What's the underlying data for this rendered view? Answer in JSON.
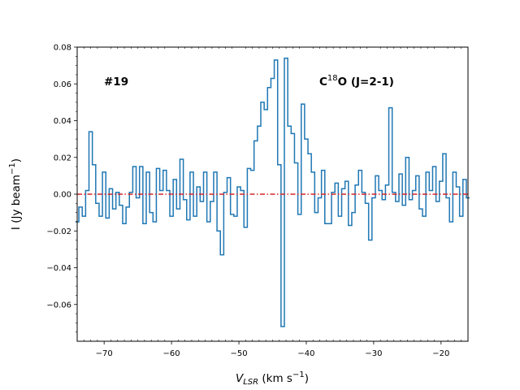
{
  "chart_data": {
    "type": "line",
    "drawstyle": "steps-mid",
    "series": [
      {
        "name": "C18O (J=2-1) spectrum",
        "color": "#1f77b4",
        "x": [
          -74,
          -73.5,
          -73,
          -72.5,
          -72,
          -71.5,
          -71,
          -70.5,
          -70,
          -69.5,
          -69,
          -68.5,
          -68,
          -67.5,
          -67,
          -66.5,
          -66,
          -65.5,
          -65,
          -64.5,
          -64,
          -63.5,
          -63,
          -62.5,
          -62,
          -61.5,
          -61,
          -60.5,
          -60,
          -59.5,
          -59,
          -58.5,
          -58,
          -57.5,
          -57,
          -56.5,
          -56,
          -55.5,
          -55,
          -54.5,
          -54,
          -53.5,
          -53,
          -52.5,
          -52,
          -51.5,
          -51,
          -50.5,
          -50,
          -49.5,
          -49,
          -48.5,
          -48,
          -47.5,
          -47,
          -46.5,
          -46,
          -45.5,
          -45,
          -44.5,
          -44,
          -43.5,
          -43,
          -42.5,
          -42,
          -41.5,
          -41,
          -40.5,
          -40,
          -39.5,
          -39,
          -38.5,
          -38,
          -37.5,
          -37,
          -36.5,
          -36,
          -35.5,
          -35,
          -34.5,
          -34,
          -33.5,
          -33,
          -32.5,
          -32,
          -31.5,
          -31,
          -30.5,
          -30,
          -29.5,
          -29,
          -28.5,
          -28,
          -27.5,
          -27,
          -26.5,
          -26,
          -25.5,
          -25,
          -24.5,
          -24,
          -23.5,
          -23,
          -22.5,
          -22,
          -21.5,
          -21,
          -20.5,
          -20,
          -19.5,
          -19,
          -18.5,
          -18,
          -17.5,
          -17,
          -16.5,
          -16
        ],
        "y": [
          -0.015,
          -0.007,
          -0.012,
          0.002,
          0.034,
          0.016,
          -0.005,
          -0.012,
          0.012,
          -0.013,
          0.003,
          -0.008,
          0.001,
          -0.006,
          -0.016,
          -0.007,
          0.001,
          0.015,
          -0.002,
          0.015,
          -0.016,
          0.012,
          -0.01,
          -0.015,
          0.014,
          0.002,
          0.013,
          0.002,
          -0.012,
          0.008,
          -0.008,
          0.019,
          -0.003,
          -0.014,
          0.012,
          -0.012,
          0.004,
          -0.004,
          0.012,
          -0.015,
          -0.004,
          0.012,
          -0.02,
          -0.033,
          0.001,
          0.009,
          -0.011,
          -0.012,
          0.004,
          0.002,
          -0.018,
          0.014,
          0.013,
          0.029,
          0.037,
          0.05,
          0.046,
          0.058,
          0.063,
          0.073,
          0.016,
          -0.072,
          0.074,
          0.037,
          0.033,
          0.017,
          -0.011,
          0.049,
          0.03,
          0.022,
          0.012,
          -0.01,
          -0.002,
          0.013,
          -0.016,
          -0.016,
          0.001,
          0.006,
          -0.012,
          0.003,
          0.007,
          -0.017,
          -0.01,
          0.005,
          0.013,
          0.001,
          -0.005,
          -0.025,
          -0.002,
          0.01,
          0.002,
          -0.003,
          0.005,
          0.047,
          0.001,
          -0.004,
          0.011,
          -0.006,
          0.02,
          -0.003,
          0.002,
          0.01,
          -0.008,
          -0.012,
          0.012,
          0.002,
          0.015,
          -0.004,
          0.007,
          0.022,
          -0.002,
          -0.015,
          0.012,
          0.004,
          -0.012,
          0.008,
          -0.002
        ]
      }
    ],
    "reference_line": {
      "y": 0,
      "color": "#d62728",
      "style": "dash-dot"
    },
    "title": "",
    "xlabel": "V_LSR (km s^-1)",
    "ylabel": "I (Jy beam^-1)",
    "xlim": [
      -74,
      -16
    ],
    "ylim": [
      -0.08,
      0.08
    ],
    "xticks": [
      -70,
      -60,
      -50,
      -40,
      -30,
      -20
    ],
    "xtick_labels": [
      "−70",
      "−60",
      "−50",
      "−40",
      "−30",
      "−20"
    ],
    "yticks": [
      -0.06,
      -0.04,
      -0.02,
      0.0,
      0.02,
      0.04,
      0.06,
      0.08
    ],
    "ytick_labels": [
      "−0.06",
      "−0.04",
      "−0.02",
      "0.00",
      "0.02",
      "0.04",
      "0.06",
      "0.08"
    ],
    "grid": false,
    "annotations": {
      "source_id": "#19",
      "line_species": "C",
      "isotope": "18",
      "transition": "O (J=2-1)"
    },
    "axis_text": {
      "xlabel_v": "V",
      "xlabel_sub": "LSR",
      "xlabel_units": " (km s",
      "xlabel_exp": "−1",
      "xlabel_close": ")",
      "ylabel_main": "I (Jy beam",
      "ylabel_exp": "−1",
      "ylabel_close": ")"
    }
  }
}
